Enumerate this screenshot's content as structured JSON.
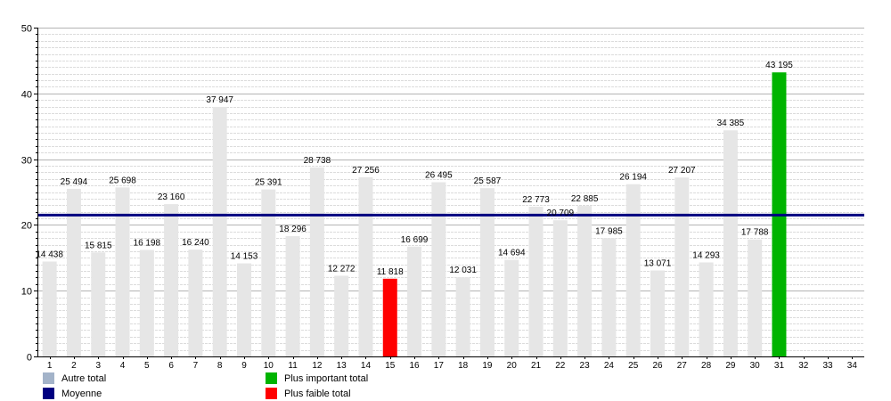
{
  "chart_data": {
    "type": "bar",
    "categories": [
      "1",
      "2",
      "3",
      "4",
      "5",
      "6",
      "7",
      "8",
      "9",
      "10",
      "11",
      "12",
      "13",
      "14",
      "15",
      "16",
      "17",
      "18",
      "19",
      "20",
      "21",
      "22",
      "23",
      "24",
      "25",
      "26",
      "27",
      "28",
      "29",
      "30",
      "31",
      "32",
      "33",
      "34"
    ],
    "values": [
      14438,
      25494,
      15815,
      25698,
      16198,
      23160,
      16240,
      37947,
      14153,
      25391,
      18296,
      28738,
      12272,
      27256,
      11818,
      16699,
      26495,
      12031,
      25587,
      14694,
      22773,
      20709,
      22885,
      17985,
      26194,
      13071,
      27207,
      14293,
      34385,
      17788,
      43195,
      null,
      null,
      null
    ],
    "value_labels": [
      "14 438",
      "25 494",
      "15 815",
      "25 698",
      "16 198",
      "23 160",
      "16 240",
      "37 947",
      "14 153",
      "25 391",
      "18 296",
      "28 738",
      "12 272",
      "27 256",
      "11 818",
      "16 699",
      "26 495",
      "12 031",
      "25 587",
      "14 694",
      "22 773",
      "20 709",
      "22 885",
      "17 985",
      "26 194",
      "13 071",
      "27 207",
      "14 293",
      "34 385",
      "17 788",
      "43 195",
      "",
      "",
      ""
    ],
    "y_scale_divisor": 1000,
    "ylim": [
      0,
      50
    ],
    "yticks": [
      "0",
      "10",
      "20",
      "30",
      "40",
      "50"
    ],
    "average": 21.5,
    "max_index": 30,
    "min_index": 14,
    "grid": true,
    "colors": {
      "bar": "#e6e6e6",
      "max": "#00b400",
      "min": "#ff0000",
      "average": "#000080",
      "other_legend": "#a3b3c9",
      "grid_major": "#b4b4b4",
      "grid_minor": "#dcdcdc"
    },
    "legend": [
      {
        "label": "Autre total",
        "color": "#a3b3c9"
      },
      {
        "label": "Plus important total",
        "color": "#00b400"
      },
      {
        "label": "Moyenne",
        "color": "#000080"
      },
      {
        "label": "Plus faible total",
        "color": "#ff0000"
      }
    ]
  }
}
